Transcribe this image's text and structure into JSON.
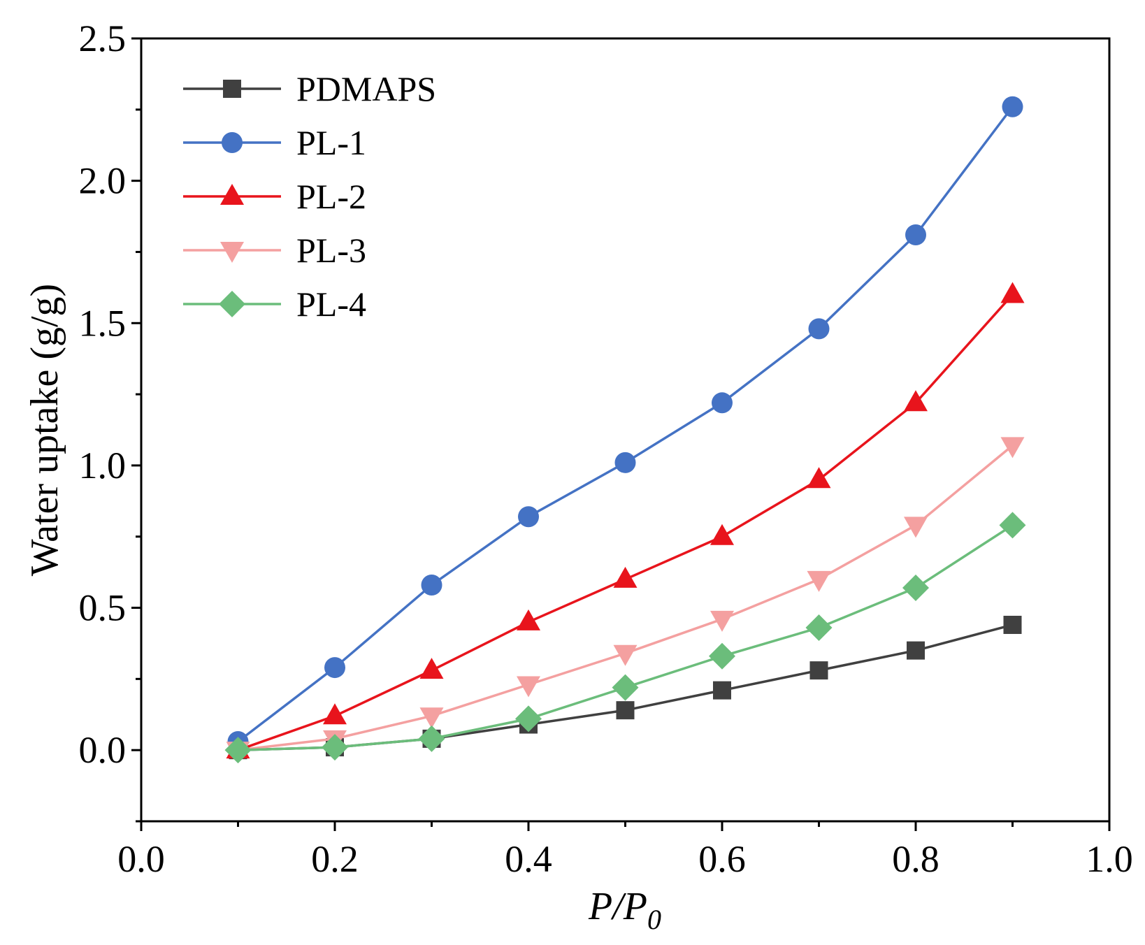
{
  "chart_data": {
    "type": "line",
    "title": "",
    "xlabel_main": "P/P",
    "xlabel_sub": "0",
    "ylabel": "Water uptake (g/g)",
    "xlim": [
      0.0,
      1.0
    ],
    "ylim": [
      -0.25,
      2.5
    ],
    "xticks": [
      "0.0",
      "0.2",
      "0.4",
      "0.6",
      "0.8",
      "1.0"
    ],
    "yticks": [
      "0.0",
      "0.5",
      "1.0",
      "1.5",
      "2.0",
      "2.5"
    ],
    "legend_position": "top-left",
    "x": [
      0.1,
      0.2,
      0.3,
      0.4,
      0.5,
      0.6,
      0.7,
      0.8,
      0.9
    ],
    "series": [
      {
        "name": "PDMAPS",
        "color": "#404040",
        "marker": "square",
        "values": [
          0.0,
          0.01,
          0.04,
          0.09,
          0.14,
          0.21,
          0.28,
          0.35,
          0.44
        ]
      },
      {
        "name": "PL-1",
        "color": "#4472c4",
        "marker": "circle",
        "values": [
          0.03,
          0.29,
          0.58,
          0.82,
          1.01,
          1.22,
          1.48,
          1.81,
          2.26
        ]
      },
      {
        "name": "PL-2",
        "color": "#e8141c",
        "marker": "triangle-up",
        "values": [
          0.0,
          0.12,
          0.28,
          0.45,
          0.6,
          0.75,
          0.95,
          1.22,
          1.6
        ]
      },
      {
        "name": "PL-3",
        "color": "#f4a0a0",
        "marker": "triangle-down",
        "values": [
          0.0,
          0.04,
          0.12,
          0.23,
          0.34,
          0.46,
          0.6,
          0.79,
          1.07
        ]
      },
      {
        "name": "PL-4",
        "color": "#6bbd7b",
        "marker": "diamond",
        "values": [
          0.0,
          0.01,
          0.04,
          0.11,
          0.22,
          0.33,
          0.43,
          0.57,
          0.79
        ]
      }
    ]
  }
}
